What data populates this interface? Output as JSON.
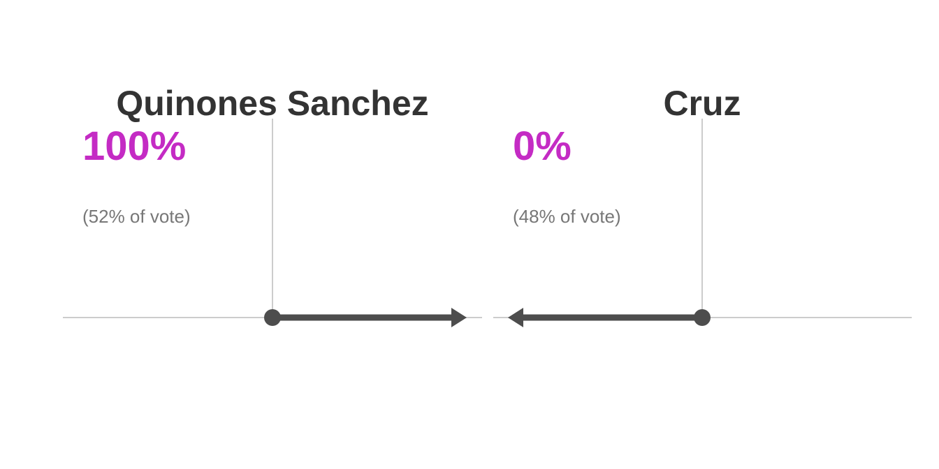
{
  "chart_data": {
    "type": "arrow",
    "title": "",
    "xlabel": "",
    "ylabel": "",
    "grid": false,
    "legend": "none",
    "colors": {
      "name": "#333333",
      "percent": "#c42bc4",
      "vote": "#777777",
      "arrow": "#4d4d4d",
      "axis": "#cccccc"
    },
    "candidates": [
      {
        "name": "Quinones Sanchez",
        "win_probability": 100,
        "win_probability_label": "100%",
        "vote_share": 52,
        "vote_label": "(52% of vote)",
        "direction": "right"
      },
      {
        "name": "Cruz",
        "win_probability": 0,
        "win_probability_label": "0%",
        "vote_share": 48,
        "vote_label": "(48% of vote)",
        "direction": "left"
      }
    ]
  }
}
